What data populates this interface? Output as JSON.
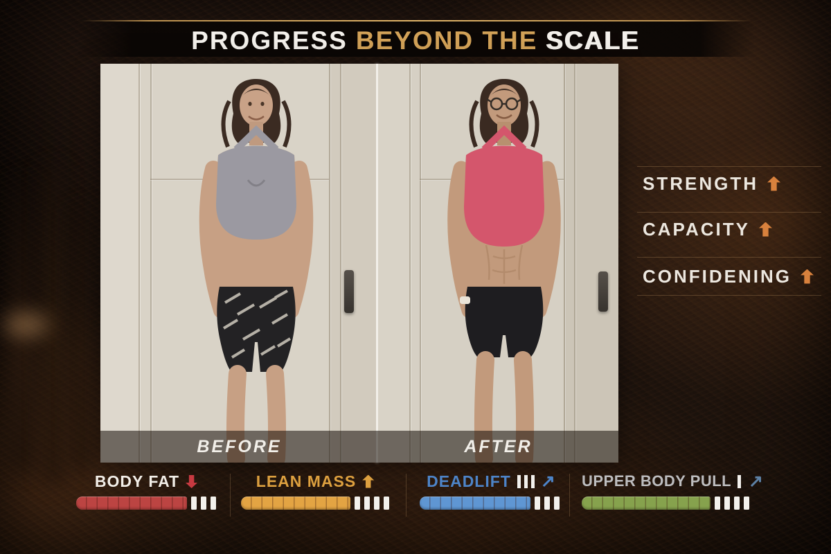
{
  "banner": {
    "title_prefix": "PROGRESS",
    "title_middle": "BEYOND THE",
    "title_suffix": "SCALE"
  },
  "comparison": {
    "before_label": "BEFORE",
    "after_label": "AFTER"
  },
  "benefits": {
    "arrow_color": "#d8813d",
    "items": [
      {
        "label": "STRENGTH",
        "icon": "up-arrow"
      },
      {
        "label": "CAPACITY",
        "icon": "up-arrow"
      },
      {
        "label": "CONFIDENING",
        "icon": "up-arrow"
      }
    ]
  },
  "metrics": [
    {
      "label": "BODY FAT",
      "trend": "down",
      "icon": "down-arrow",
      "label_color": "#f2eee8",
      "arrow_color": "#c73a41",
      "bar_color": "#bc4442",
      "bar_fill": "full",
      "bar_segments": 10,
      "tick_count": 3
    },
    {
      "label": "LEAN MASS",
      "trend": "up",
      "icon": "up-arrow",
      "label_color": "#dda03f",
      "arrow_color": "#dda03f",
      "bar_color": "#e3a443",
      "bar_fill": "full",
      "bar_segments": 12,
      "tick_count": 4
    },
    {
      "label": "DEADLIFT",
      "trend": "up-right",
      "icon": "up-right-arrow",
      "volume_icon": "triple-bars",
      "label_color": "#4d84c8",
      "arrow_color": "#4d84c8",
      "bar_color": "#5f96d3",
      "bar_fill": "full",
      "bar_segments": 11,
      "tick_count": 3
    },
    {
      "label": "UPPER BODY PULL",
      "trend": "up-right",
      "icon": "up-right-arrow",
      "volume_icon": "triple-bars",
      "label_color": "#bdbdbf",
      "arrow_color": "#5d81a5",
      "bar_color": "#86a24d",
      "bar_fill": "full",
      "bar_segments": 12,
      "tick_count": 4
    }
  ],
  "colors": {
    "background": "#1d130c",
    "banner_bg": "#0c0805",
    "accent_gold": "#d3a258",
    "tick_color": "#f3f1ec",
    "photo_divider": "#f2efe9"
  }
}
